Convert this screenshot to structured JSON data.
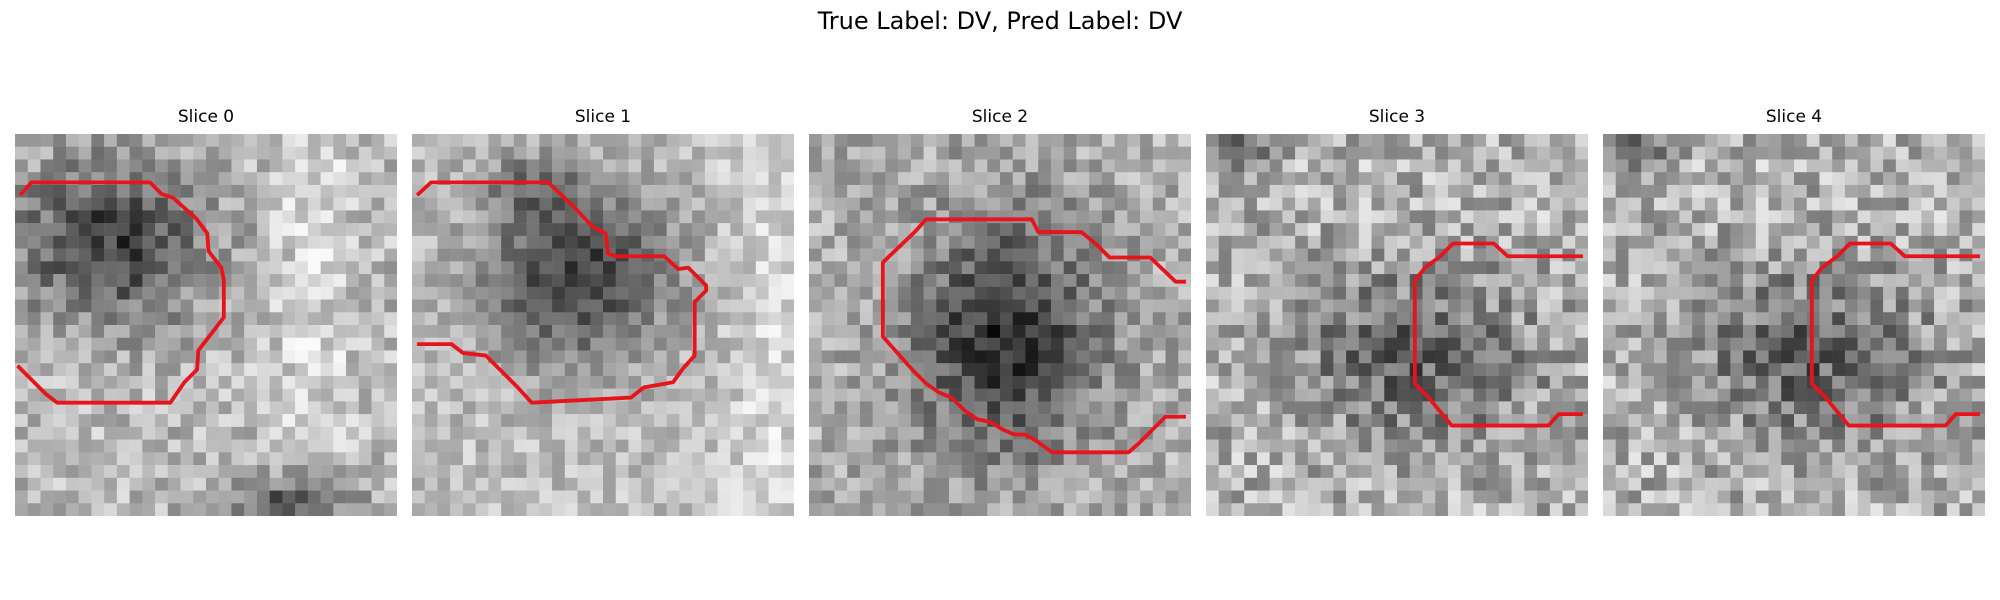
{
  "figure": {
    "title": "True Label: DV, Pred Label: DV"
  },
  "panels": [
    {
      "title": "Slice 0"
    },
    {
      "title": "Slice 1"
    },
    {
      "title": "Slice 2"
    },
    {
      "title": "Slice 3"
    },
    {
      "title": "Slice 4"
    }
  ],
  "colors": {
    "contour": "#e8141c",
    "background": "#ffffff"
  }
}
